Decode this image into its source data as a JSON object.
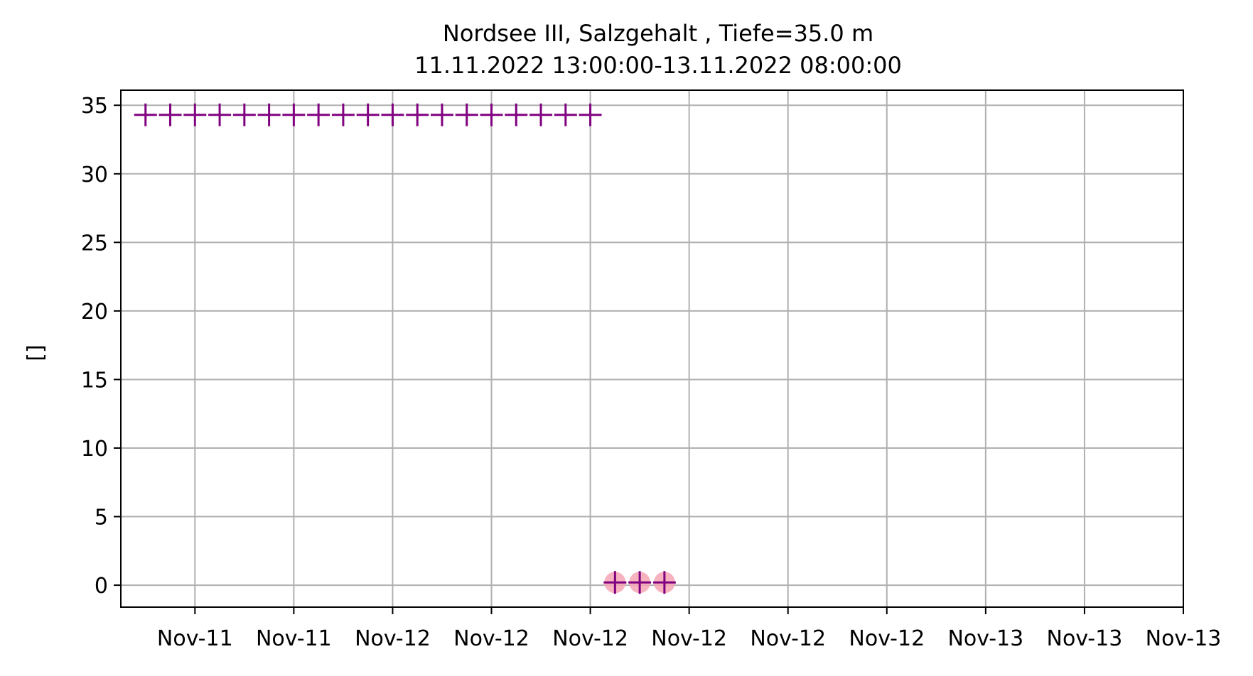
{
  "chart_data": {
    "type": "scatter",
    "title": "Nordsee III, Salzgehalt , Tiefe=35.0 m",
    "subtitle": "11.11.2022 13:00:00-13.11.2022 08:00:00",
    "ylabel": "[]",
    "xlabel": "",
    "ylim": [
      -1.6,
      36.1
    ],
    "xlim": [
      "2022-11-11T13:00:00",
      "2022-11-13T08:00:00"
    ],
    "x_ticks": [
      {
        "t": "2022-11-11T16:00:00",
        "label": "Nov-11"
      },
      {
        "t": "2022-11-11T20:00:00",
        "label": "Nov-11"
      },
      {
        "t": "2022-11-12T00:00:00",
        "label": "Nov-12"
      },
      {
        "t": "2022-11-12T04:00:00",
        "label": "Nov-12"
      },
      {
        "t": "2022-11-12T08:00:00",
        "label": "Nov-12"
      },
      {
        "t": "2022-11-12T12:00:00",
        "label": "Nov-12"
      },
      {
        "t": "2022-11-12T16:00:00",
        "label": "Nov-12"
      },
      {
        "t": "2022-11-12T20:00:00",
        "label": "Nov-12"
      },
      {
        "t": "2022-11-13T00:00:00",
        "label": "Nov-13"
      },
      {
        "t": "2022-11-13T04:00:00",
        "label": "Nov-13"
      },
      {
        "t": "2022-11-13T08:00:00",
        "label": "Nov-13"
      }
    ],
    "y_ticks": [
      0,
      5,
      10,
      15,
      20,
      25,
      30,
      35
    ],
    "grid": true,
    "series": [
      {
        "marker": "plus",
        "color": "#800080",
        "points": [
          {
            "x": "2022-11-11T14:00:00",
            "y": 34.3
          },
          {
            "x": "2022-11-11T15:00:00",
            "y": 34.3
          },
          {
            "x": "2022-11-11T16:00:00",
            "y": 34.3
          },
          {
            "x": "2022-11-11T17:00:00",
            "y": 34.3
          },
          {
            "x": "2022-11-11T18:00:00",
            "y": 34.3
          },
          {
            "x": "2022-11-11T19:00:00",
            "y": 34.3
          },
          {
            "x": "2022-11-11T20:00:00",
            "y": 34.3
          },
          {
            "x": "2022-11-11T21:00:00",
            "y": 34.3
          },
          {
            "x": "2022-11-11T22:00:00",
            "y": 34.3
          },
          {
            "x": "2022-11-11T23:00:00",
            "y": 34.3
          },
          {
            "x": "2022-11-12T00:00:00",
            "y": 34.3
          },
          {
            "x": "2022-11-12T01:00:00",
            "y": 34.3
          },
          {
            "x": "2022-11-12T02:00:00",
            "y": 34.3
          },
          {
            "x": "2022-11-12T03:00:00",
            "y": 34.3
          },
          {
            "x": "2022-11-12T04:00:00",
            "y": 34.3
          },
          {
            "x": "2022-11-12T05:00:00",
            "y": 34.3
          },
          {
            "x": "2022-11-12T06:00:00",
            "y": 34.3
          },
          {
            "x": "2022-11-12T07:00:00",
            "y": 34.3
          },
          {
            "x": "2022-11-12T08:00:00",
            "y": 34.3
          },
          {
            "x": "2022-11-12T09:00:00",
            "y": 0.2
          },
          {
            "x": "2022-11-12T10:00:00",
            "y": 0.2
          },
          {
            "x": "2022-11-12T11:00:00",
            "y": 0.2
          }
        ]
      }
    ],
    "flagged_points": {
      "marker": "circle",
      "color": "#f4a6b4",
      "points": [
        {
          "x": "2022-11-12T09:00:00",
          "y": 0.2
        },
        {
          "x": "2022-11-12T10:00:00",
          "y": 0.2
        },
        {
          "x": "2022-11-12T11:00:00",
          "y": 0.2
        }
      ]
    },
    "colors": {
      "grid": "#b0b0b0",
      "axes": "#000000"
    }
  }
}
